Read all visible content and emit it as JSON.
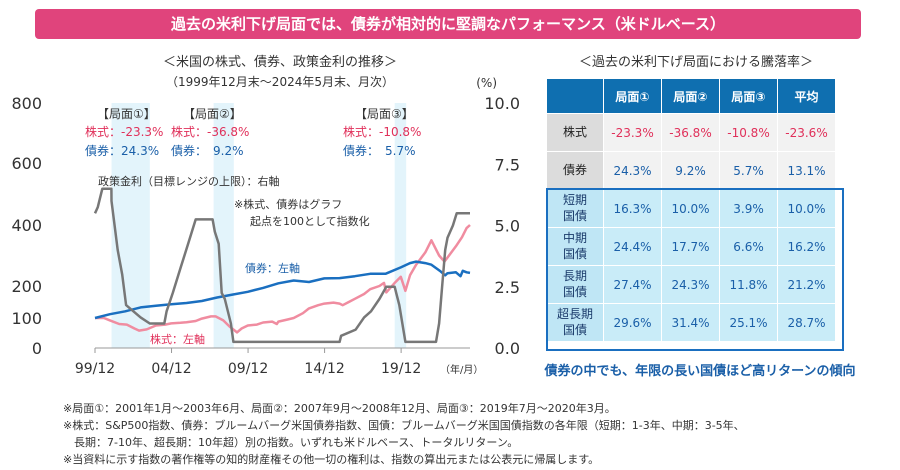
{
  "banner": "過去の米利下げ局面では、債券が相対的に堅調なパフォーマンス（米ドルベース）",
  "left_title": "＜米国の株式、債券、政策金利の推移＞",
  "left_subtitle": "（1999年12月末～2024年5月末、月次）",
  "right_title": "＜過去の米利下げ局面における騰落率＞",
  "table": {
    "headers": [
      "局面①",
      "局面②",
      "局面③",
      "平均"
    ],
    "rows": [
      {
        "label": [
          "株式"
        ],
        "values": [
          "-23.3%",
          "-36.8%",
          "-10.8%",
          "-23.6%"
        ],
        "kind": "neg"
      },
      {
        "label": [
          "債券"
        ],
        "values": [
          "24.3%",
          "9.2%",
          "5.7%",
          "13.1%"
        ],
        "kind": "pos"
      },
      {
        "label": [
          "短期",
          "国債"
        ],
        "values": [
          "16.3%",
          "10.0%",
          "3.9%",
          "10.0%"
        ],
        "kind": "bond"
      },
      {
        "label": [
          "中期",
          "国債"
        ],
        "values": [
          "24.4%",
          "17.7%",
          "6.6%",
          "16.2%"
        ],
        "kind": "bond"
      },
      {
        "label": [
          "長期",
          "国債"
        ],
        "values": [
          "27.4%",
          "24.3%",
          "11.8%",
          "21.2%"
        ],
        "kind": "bond"
      },
      {
        "label": [
          "超長期",
          "国債"
        ],
        "values": [
          "29.6%",
          "31.4%",
          "25.1%",
          "28.7%"
        ],
        "kind": "bond"
      }
    ]
  },
  "conclusion": "債券の中でも、年限の長い国債ほど高リターンの傾向",
  "notes": [
    "※局面①：2001年1月～2003年6月、局面②：2007年9月～2008年12月、局面③：2019年7月～2020年3月。",
    "※株式：S&P500指数、債券：ブルームバーグ米国債券指数、国債：ブルームバーグ米国国債指数の各年限（短期：1-3年、中期：3-5年、",
    "　長期：7-10年、超長期：10年超）別の指数。いずれも米ドルベース、トータルリターン。",
    "※当資料に示す指数の著作権等の知的財産権その他一切の権利は、指数の算出元または公表元に帰属します。"
  ],
  "chart_data": {
    "type": "line",
    "left_axis": {
      "min": 0,
      "max": 800,
      "ticks": [
        "0",
        "100",
        "200",
        "400",
        "600",
        "800"
      ],
      "tick_values": [
        0,
        100,
        200,
        400,
        600,
        800
      ]
    },
    "right_axis": {
      "unit": "(%)",
      "min": 0,
      "max": 10,
      "ticks": [
        "0.0",
        "2.5",
        "5.0",
        "7.5",
        "10.0"
      ],
      "tick_values": [
        0,
        2.5,
        5,
        7.5,
        10
      ]
    },
    "x_ticks": [
      "99/12",
      "04/12",
      "09/12",
      "14/12",
      "19/12"
    ],
    "x_tick_years": [
      1999.92,
      2004.92,
      2009.92,
      2014.92,
      2019.92
    ],
    "x_unit": "（年/月）",
    "x_range": [
      1999.92,
      2024.42
    ],
    "phases": [
      {
        "label": "【局面①】",
        "stock": "株式：-23.3%",
        "bond": "債券：24.3%",
        "start": 2001.0,
        "end": 2003.5
      },
      {
        "label": "【局面②】",
        "stock": "株式：-36.8%",
        "bond": "債券：　9.2%",
        "start": 2007.67,
        "end": 2008.99
      },
      {
        "label": "【局面③】",
        "stock": "株式：-10.8%",
        "bond": "債券：　5.7%",
        "start": 2019.5,
        "end": 2020.25
      }
    ],
    "rate_label": "政策金利（目標レンジの上限）：右軸",
    "index_note": [
      "※株式、債券はグラフ",
      "起点を100として指数化"
    ],
    "bond_label": "債券：左軸",
    "stock_label": "株式：左軸",
    "series": [
      {
        "name": "株式",
        "axis": "left",
        "color": "#f08ca0",
        "points": [
          [
            1999.92,
            100
          ],
          [
            2000.5,
            100
          ],
          [
            2000.9,
            92
          ],
          [
            2001.5,
            80
          ],
          [
            2002.0,
            78
          ],
          [
            2002.5,
            65
          ],
          [
            2002.8,
            58
          ],
          [
            2003.3,
            62
          ],
          [
            2003.9,
            75
          ],
          [
            2004.5,
            78
          ],
          [
            2004.9,
            82
          ],
          [
            2005.5,
            84
          ],
          [
            2005.9,
            86
          ],
          [
            2006.5,
            90
          ],
          [
            2006.9,
            98
          ],
          [
            2007.5,
            105
          ],
          [
            2007.8,
            105
          ],
          [
            2008.3,
            92
          ],
          [
            2008.7,
            72
          ],
          [
            2009.2,
            52
          ],
          [
            2009.5,
            65
          ],
          [
            2009.9,
            75
          ],
          [
            2010.5,
            78
          ],
          [
            2010.9,
            85
          ],
          [
            2011.5,
            88
          ],
          [
            2011.8,
            80
          ],
          [
            2011.9,
            88
          ],
          [
            2012.5,
            95
          ],
          [
            2012.9,
            100
          ],
          [
            2013.5,
            115
          ],
          [
            2013.9,
            130
          ],
          [
            2014.5,
            140
          ],
          [
            2014.9,
            145
          ],
          [
            2015.5,
            148
          ],
          [
            2015.9,
            145
          ],
          [
            2016.1,
            140
          ],
          [
            2016.5,
            150
          ],
          [
            2016.9,
            160
          ],
          [
            2017.5,
            175
          ],
          [
            2017.9,
            190
          ],
          [
            2018.5,
            200
          ],
          [
            2018.8,
            210
          ],
          [
            2018.95,
            180
          ],
          [
            2019.5,
            210
          ],
          [
            2019.9,
            230
          ],
          [
            2020.2,
            185
          ],
          [
            2020.5,
            235
          ],
          [
            2020.9,
            270
          ],
          [
            2021.5,
            310
          ],
          [
            2021.9,
            350
          ],
          [
            2022.4,
            300
          ],
          [
            2022.75,
            280
          ],
          [
            2022.9,
            290
          ],
          [
            2023.5,
            330
          ],
          [
            2023.9,
            360
          ],
          [
            2024.2,
            390
          ],
          [
            2024.42,
            400
          ]
        ]
      },
      {
        "name": "債券",
        "axis": "left",
        "color": "#1a6fc0",
        "points": [
          [
            1999.92,
            100
          ],
          [
            2000.9,
            112
          ],
          [
            2001.9,
            121
          ],
          [
            2002.9,
            133
          ],
          [
            2003.9,
            138
          ],
          [
            2004.9,
            143
          ],
          [
            2005.9,
            147
          ],
          [
            2006.9,
            153
          ],
          [
            2007.9,
            164
          ],
          [
            2008.9,
            173
          ],
          [
            2009.9,
            182
          ],
          [
            2010.9,
            194
          ],
          [
            2011.9,
            209
          ],
          [
            2012.9,
            218
          ],
          [
            2013.9,
            213
          ],
          [
            2014.9,
            225
          ],
          [
            2015.9,
            226
          ],
          [
            2016.9,
            232
          ],
          [
            2017.9,
            240
          ],
          [
            2018.9,
            240
          ],
          [
            2019.9,
            261
          ],
          [
            2020.5,
            275
          ],
          [
            2020.9,
            280
          ],
          [
            2021.5,
            275
          ],
          [
            2021.9,
            270
          ],
          [
            2022.5,
            248
          ],
          [
            2022.8,
            235
          ],
          [
            2022.95,
            242
          ],
          [
            2023.5,
            245
          ],
          [
            2023.8,
            232
          ],
          [
            2023.95,
            250
          ],
          [
            2024.2,
            245
          ],
          [
            2024.42,
            243
          ]
        ]
      },
      {
        "name": "政策金利",
        "axis": "right",
        "color": "#777777",
        "points": [
          [
            1999.92,
            5.5
          ],
          [
            2000.1,
            5.75
          ],
          [
            2000.4,
            6.5
          ],
          [
            2000.99,
            6.5
          ],
          [
            2001.0,
            6.0
          ],
          [
            2001.2,
            5.0
          ],
          [
            2001.4,
            4.0
          ],
          [
            2001.7,
            3.0
          ],
          [
            2001.95,
            1.75
          ],
          [
            2002.9,
            1.25
          ],
          [
            2003.5,
            1.0
          ],
          [
            2004.45,
            1.0
          ],
          [
            2004.6,
            1.5
          ],
          [
            2005.0,
            2.25
          ],
          [
            2005.5,
            3.25
          ],
          [
            2006.0,
            4.25
          ],
          [
            2006.5,
            5.25
          ],
          [
            2007.6,
            5.25
          ],
          [
            2007.75,
            4.75
          ],
          [
            2008.0,
            4.25
          ],
          [
            2008.2,
            2.25
          ],
          [
            2008.4,
            2.0
          ],
          [
            2008.8,
            1.0
          ],
          [
            2008.96,
            0.25
          ],
          [
            2015.9,
            0.25
          ],
          [
            2016.0,
            0.5
          ],
          [
            2016.95,
            0.75
          ],
          [
            2017.5,
            1.25
          ],
          [
            2017.95,
            1.5
          ],
          [
            2018.5,
            2.0
          ],
          [
            2018.95,
            2.5
          ],
          [
            2019.5,
            2.5
          ],
          [
            2019.6,
            2.25
          ],
          [
            2019.8,
            1.75
          ],
          [
            2020.2,
            0.25
          ],
          [
            2022.2,
            0.25
          ],
          [
            2022.4,
            1.0
          ],
          [
            2022.6,
            2.5
          ],
          [
            2022.8,
            4.0
          ],
          [
            2022.95,
            4.5
          ],
          [
            2023.3,
            5.0
          ],
          [
            2023.55,
            5.5
          ],
          [
            2024.42,
            5.5
          ]
        ]
      }
    ]
  }
}
